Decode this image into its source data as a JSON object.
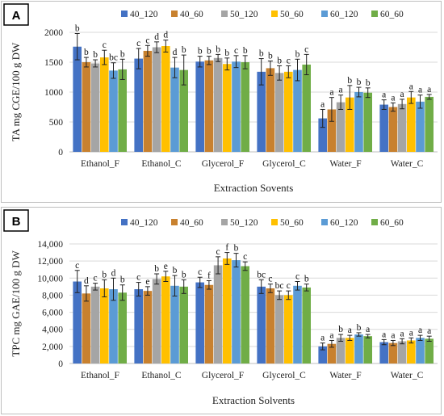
{
  "palette": [
    "#4472c4",
    "#c8812f",
    "#a5a5a5",
    "#ffc000",
    "#5b9bd5",
    "#70ad47"
  ],
  "chart_data": [
    {
      "type": "bar",
      "panel_label": "A",
      "xlabel": "Extraction Sovents",
      "ylabel": "TA mg CGE/100 g DW",
      "ylim": [
        0,
        2000
      ],
      "yticks": [
        0,
        500,
        1000,
        1500,
        2000
      ],
      "ytick_labels": [
        "0",
        "500",
        "1000",
        "1500",
        "2000"
      ],
      "legend_position": "top",
      "categories": [
        "Ethanol_F",
        "Ethanol_C",
        "Glycerol_F",
        "Glycerol_C",
        "Water_F",
        "Water_C"
      ],
      "series": [
        {
          "name": "40_120",
          "values": [
            1760,
            1560,
            1510,
            1340,
            560,
            790
          ],
          "errors": [
            220,
            170,
            90,
            220,
            150,
            80
          ],
          "letters": [
            "b",
            "c",
            "b",
            "b",
            "a",
            "a"
          ]
        },
        {
          "name": "40_60",
          "values": [
            1500,
            1690,
            1530,
            1400,
            710,
            750
          ],
          "errors": [
            80,
            90,
            70,
            120,
            200,
            70
          ],
          "letters": [
            "b",
            "c",
            "b",
            "b",
            "a",
            "a"
          ]
        },
        {
          "name": "50_120",
          "values": [
            1480,
            1750,
            1570,
            1320,
            830,
            800
          ],
          "errors": [
            60,
            90,
            60,
            120,
            120,
            80
          ],
          "letters": [
            "b",
            "d",
            "b",
            "b",
            "a",
            "a"
          ]
        },
        {
          "name": "50_60",
          "values": [
            1580,
            1770,
            1470,
            1340,
            910,
            910
          ],
          "errors": [
            120,
            100,
            100,
            100,
            200,
            100
          ],
          "letters": [
            "c",
            "d",
            "b",
            "c",
            "b",
            "a"
          ]
        },
        {
          "name": "60_120",
          "values": [
            1360,
            1410,
            1510,
            1370,
            1000,
            840
          ],
          "errors": [
            130,
            170,
            100,
            180,
            80,
            110
          ],
          "letters": [
            "bc",
            "d",
            "c",
            "b",
            "b",
            "a"
          ]
        },
        {
          "name": "60_60",
          "values": [
            1380,
            1370,
            1500,
            1460,
            990,
            920
          ],
          "errors": [
            170,
            250,
            110,
            170,
            80,
            40
          ],
          "letters": [
            "b",
            "b",
            "b",
            "c",
            "b",
            "a"
          ]
        }
      ]
    },
    {
      "type": "bar",
      "panel_label": "B",
      "xlabel": "Extraction Solvents",
      "ylabel": "TPC mg GAE/100 g DW",
      "ylim": [
        0,
        14000
      ],
      "yticks": [
        0,
        2000,
        4000,
        6000,
        8000,
        10000,
        12000,
        14000
      ],
      "ytick_labels": [
        "0",
        "2,000",
        "4,000",
        "6,000",
        "8,000",
        "10,000",
        "12,000",
        "14,000"
      ],
      "legend_position": "top",
      "categories": [
        "Ethanol_F",
        "Ethanol_C",
        "Glycerol_F",
        "Glycerol_C",
        "Water_F",
        "Water_C"
      ],
      "series": [
        {
          "name": "40_120",
          "values": [
            9600,
            8700,
            9500,
            9000,
            2000,
            2500
          ],
          "errors": [
            1300,
            800,
            600,
            800,
            400,
            300
          ],
          "letters": [
            "c",
            "c",
            "c",
            "bc",
            "a",
            "a"
          ]
        },
        {
          "name": "40_60",
          "values": [
            8200,
            8500,
            9200,
            8800,
            2300,
            2400
          ],
          "errors": [
            900,
            500,
            500,
            500,
            400,
            300
          ],
          "letters": [
            "d",
            "e",
            "f",
            "c",
            "a",
            "a"
          ]
        },
        {
          "name": "50_120",
          "values": [
            9000,
            9900,
            11500,
            8000,
            3000,
            2600
          ],
          "errors": [
            400,
            600,
            1000,
            500,
            400,
            300
          ],
          "letters": [
            "c",
            "b",
            "c",
            "bc",
            "b",
            "a"
          ]
        },
        {
          "name": "50_60",
          "values": [
            8800,
            10200,
            12300,
            8000,
            3000,
            2700
          ],
          "errors": [
            1000,
            600,
            700,
            500,
            300,
            300
          ],
          "letters": [
            "b",
            "e",
            "f",
            "c",
            "a",
            "a"
          ]
        },
        {
          "name": "60_120",
          "values": [
            8700,
            9100,
            12100,
            9100,
            3400,
            3000
          ],
          "errors": [
            1300,
            1200,
            800,
            500,
            200,
            300
          ],
          "letters": [
            "d",
            "b",
            "b",
            "c",
            "b",
            "a"
          ]
        },
        {
          "name": "60_60",
          "values": [
            8300,
            9000,
            11400,
            8900,
            3200,
            2900
          ],
          "errors": [
            900,
            800,
            500,
            400,
            200,
            300
          ],
          "letters": [
            "b",
            "b",
            "c",
            "b",
            "a",
            "a"
          ]
        }
      ]
    }
  ]
}
